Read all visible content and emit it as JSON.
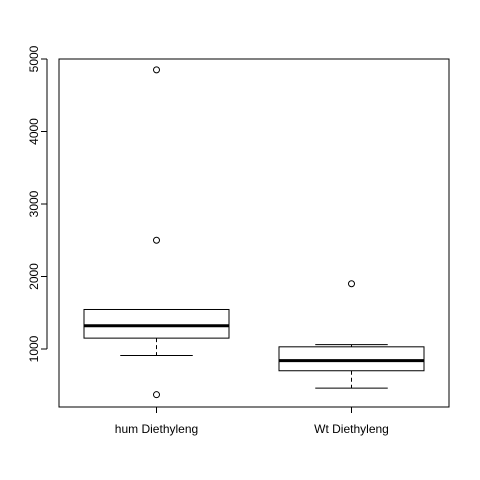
{
  "chart_data": {
    "type": "boxplot",
    "title": "",
    "xlabel": "",
    "ylabel": "",
    "ylim": [
      200,
      5000
    ],
    "y_ticks": [
      "1000",
      "2000",
      "3000",
      "4000",
      "5000"
    ],
    "grid": false,
    "categories": [
      "hum Diethyleng",
      "Wt Diethyleng"
    ],
    "boxes": [
      {
        "name": "hum Diethyleng",
        "whisker_low": 910,
        "q1": 1150,
        "median": 1320,
        "q3": 1545,
        "whisker_high": 1545,
        "outliers": [
          4850,
          2500,
          370
        ]
      },
      {
        "name": "Wt Diethyleng",
        "whisker_low": 460,
        "q1": 700,
        "median": 840,
        "q3": 1030,
        "whisker_high": 1060,
        "outliers": [
          1900
        ]
      }
    ]
  }
}
